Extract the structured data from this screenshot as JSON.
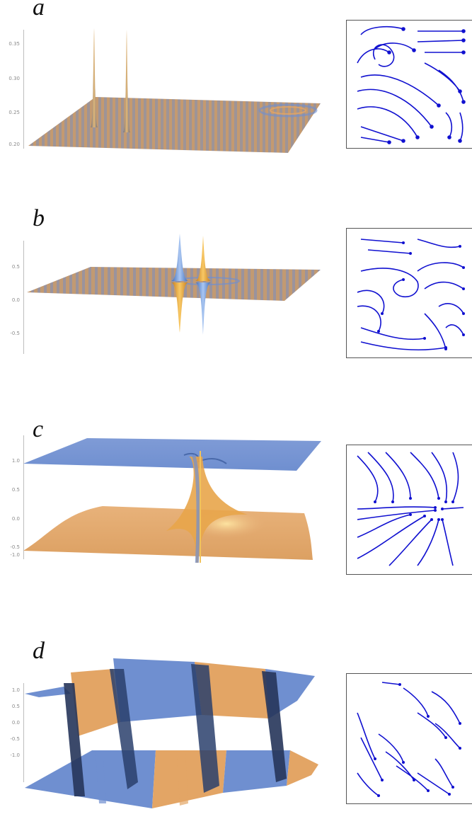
{
  "panels": [
    {
      "letter": "a",
      "ticks": [
        "0.35",
        "0.30",
        "0.25",
        "0.20"
      ]
    },
    {
      "letter": "b",
      "ticks": [
        "0.5",
        "0.0",
        "-0.5"
      ]
    },
    {
      "letter": "c",
      "ticks": [
        "1.0",
        "0.5",
        "0.0",
        "-0.5",
        "-1.0"
      ]
    },
    {
      "letter": "d",
      "ticks": [
        "1.0",
        "0.5",
        "0.0",
        "-0.5",
        "-1.0"
      ]
    }
  ],
  "colors": {
    "blue_surface": "#6f8fd0",
    "orange_surface": "#e3a565",
    "field_arrows": "#1010d0",
    "axis": "#bdbdbd"
  }
}
